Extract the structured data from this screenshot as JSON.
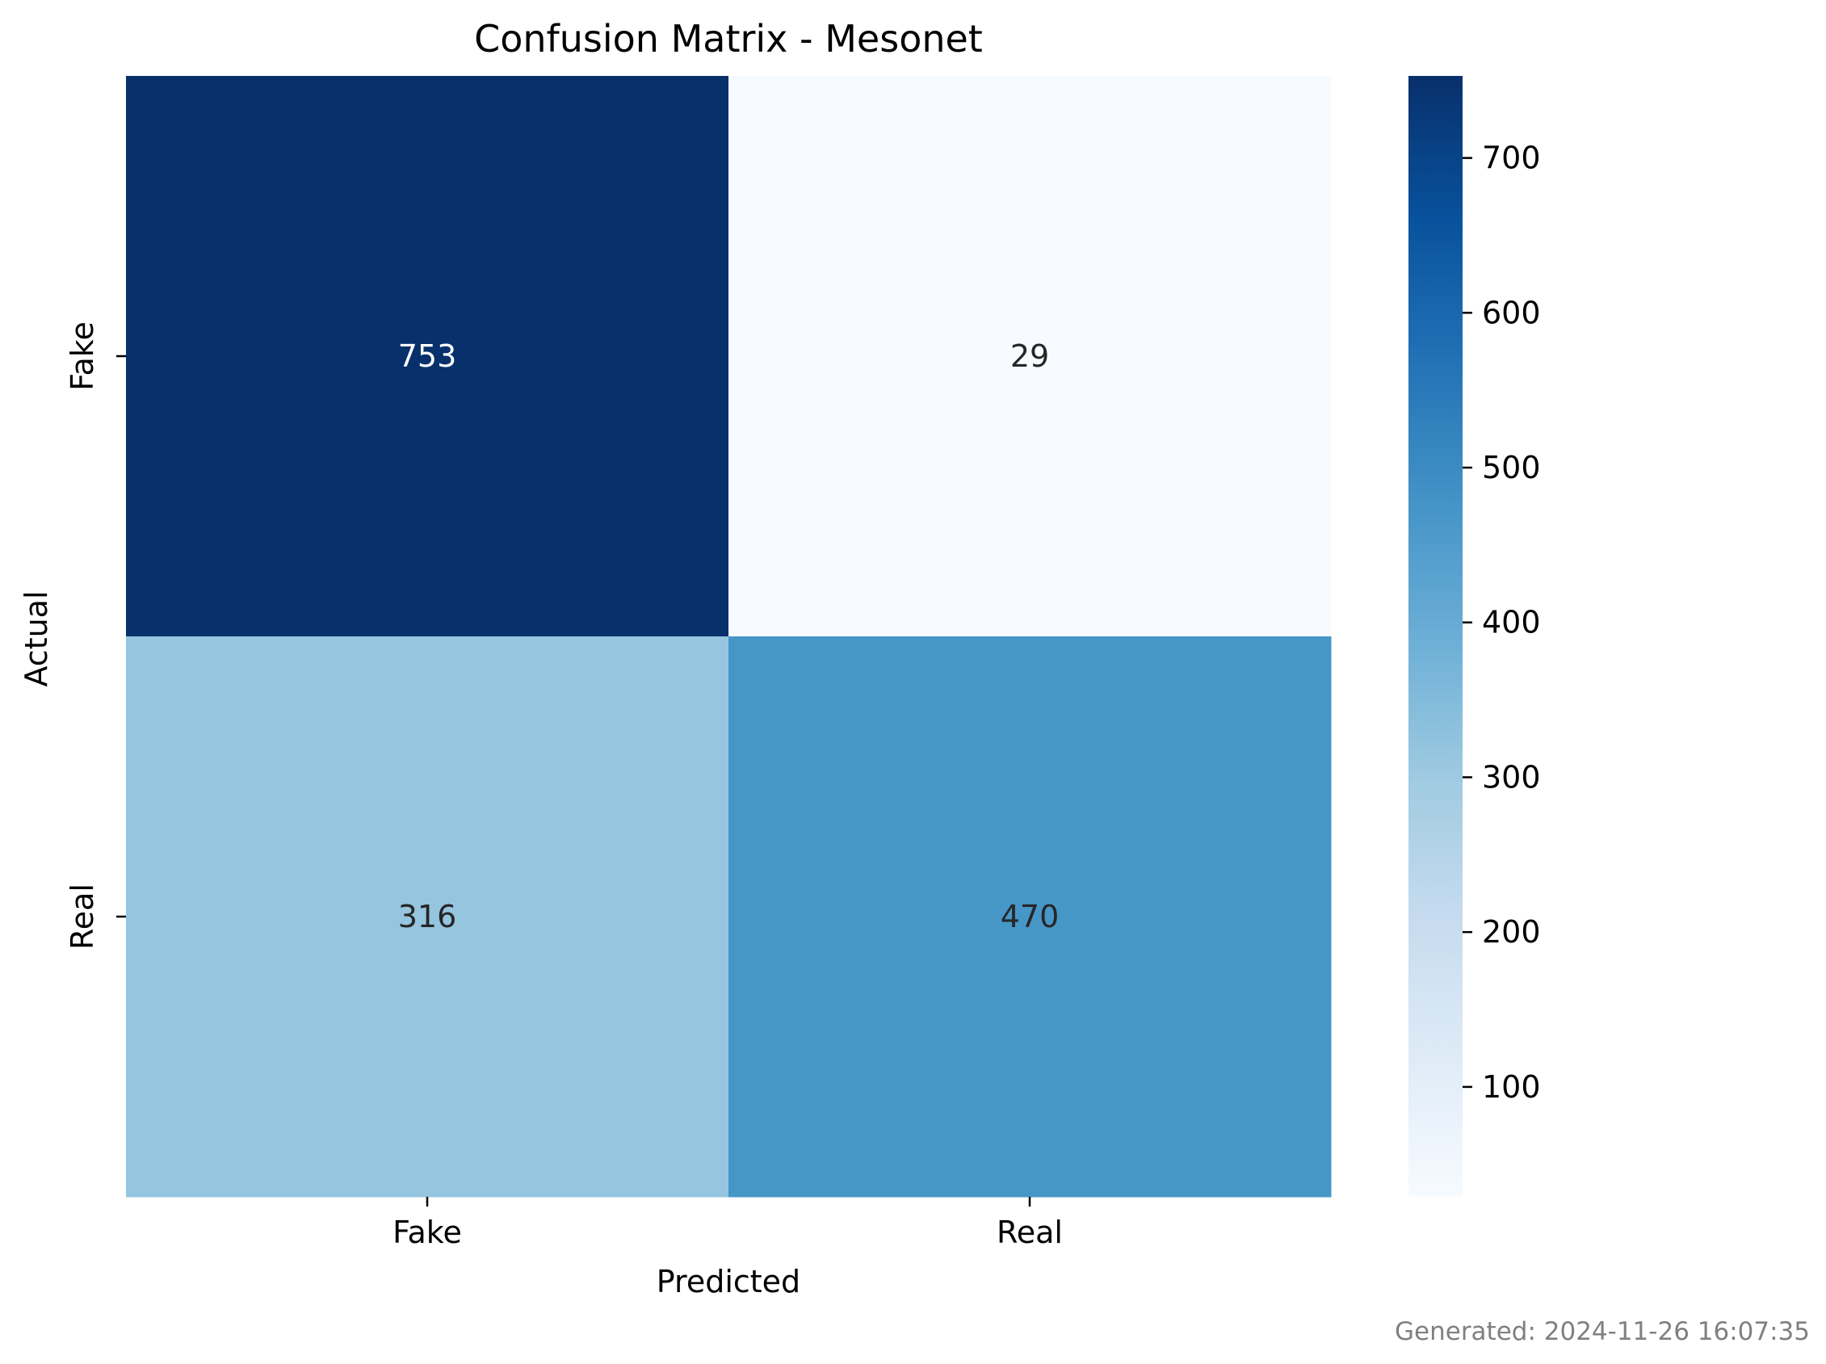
{
  "chart_data": {
    "type": "heatmap",
    "title": "Confusion Matrix - Mesonet",
    "xlabel": "Predicted",
    "ylabel": "Actual",
    "x_categories": [
      "Fake",
      "Real"
    ],
    "y_categories": [
      "Fake",
      "Real"
    ],
    "values": [
      [
        753,
        29
      ],
      [
        316,
        470
      ]
    ],
    "colormap": "Blues",
    "vmin": 29,
    "vmax": 753,
    "colorbar_ticks": [
      100,
      200,
      300,
      400,
      500,
      600,
      700
    ],
    "annotation_colors": {
      "dark_cells": "#ffffff",
      "light_cells": "#262626"
    },
    "grid": false
  },
  "footer": {
    "generated": "Generated: 2024-11-26 16:07:35"
  }
}
